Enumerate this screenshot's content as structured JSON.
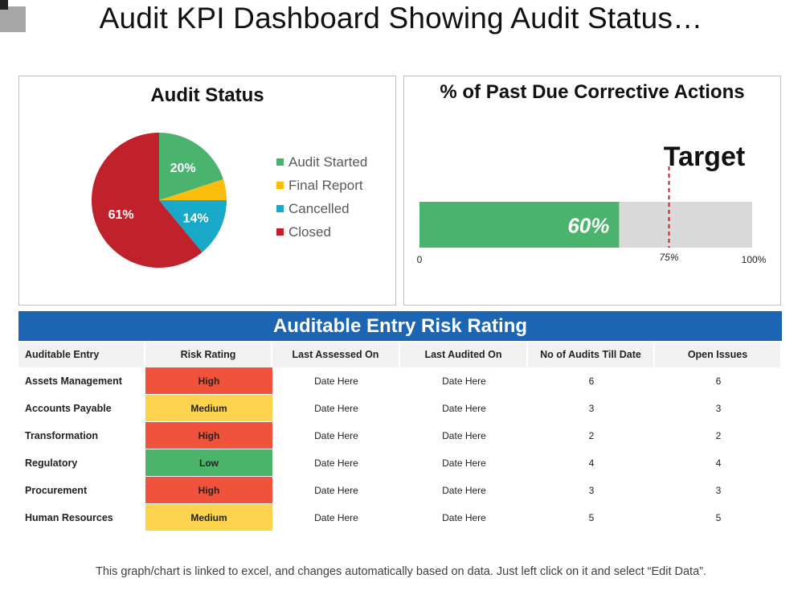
{
  "title": "Audit KPI Dashboard Showing Audit Status…",
  "colors": {
    "audit_started": "#4ab46f",
    "final_report": "#fbbc0b",
    "cancelled": "#18a8c8",
    "closed": "#c0222c",
    "bar_fill": "#4ab46f",
    "bar_track": "#d9d9d9",
    "target_line": "#c0222c",
    "banner": "#1b65b3"
  },
  "chart_data": [
    {
      "type": "pie",
      "title": "Audit Status",
      "slices": [
        {
          "label": "Audit Started",
          "value": 20,
          "data_label": "20%"
        },
        {
          "label": "Final Report",
          "value": 5,
          "data_label": ""
        },
        {
          "label": "Cancelled",
          "value": 14,
          "data_label": "14%"
        },
        {
          "label": "Closed",
          "value": 61,
          "data_label": "61%"
        }
      ],
      "legend": "right"
    },
    {
      "type": "bar",
      "title": "% of Past Due Corrective Actions",
      "value": 60,
      "value_label": "60%",
      "target": 75,
      "target_label": "Target",
      "xlim": [
        0,
        100
      ],
      "ticks": [
        {
          "value": 0,
          "label": "0"
        },
        {
          "value": 75,
          "label": "75%"
        },
        {
          "value": 100,
          "label": "100%"
        }
      ]
    },
    {
      "type": "table",
      "title": "Auditable Entry Risk Rating",
      "columns": [
        "Auditable Entry",
        "Risk Rating",
        "Last Assessed On",
        "Last Audited  On",
        "No of Audits Till Date",
        "Open Issues"
      ],
      "rows": [
        {
          "entry": "Assets Management",
          "rating": "High",
          "level": "high",
          "assessed": "Date Here",
          "audited": "Date Here",
          "audits": "6",
          "issues": "6"
        },
        {
          "entry": "Accounts Payable",
          "rating": "Medium",
          "level": "medium",
          "assessed": "Date Here",
          "audited": "Date Here",
          "audits": "3",
          "issues": "3"
        },
        {
          "entry": "Transformation",
          "rating": "High",
          "level": "high",
          "assessed": "Date Here",
          "audited": "Date Here",
          "audits": "2",
          "issues": "2"
        },
        {
          "entry": "Regulatory",
          "rating": "Low",
          "level": "low",
          "assessed": "Date Here",
          "audited": "Date Here",
          "audits": "4",
          "issues": "4"
        },
        {
          "entry": "Procurement",
          "rating": "High",
          "level": "high",
          "assessed": "Date Here",
          "audited": "Date Here",
          "audits": "3",
          "issues": "3"
        },
        {
          "entry": "Human Resources",
          "rating": "Medium",
          "level": "medium",
          "assessed": "Date Here",
          "audited": "Date Here",
          "audits": "5",
          "issues": "5"
        }
      ]
    }
  ],
  "footnote": "This graph/chart is linked to excel, and changes automatically based on data. Just left click on it and select “Edit Data”."
}
